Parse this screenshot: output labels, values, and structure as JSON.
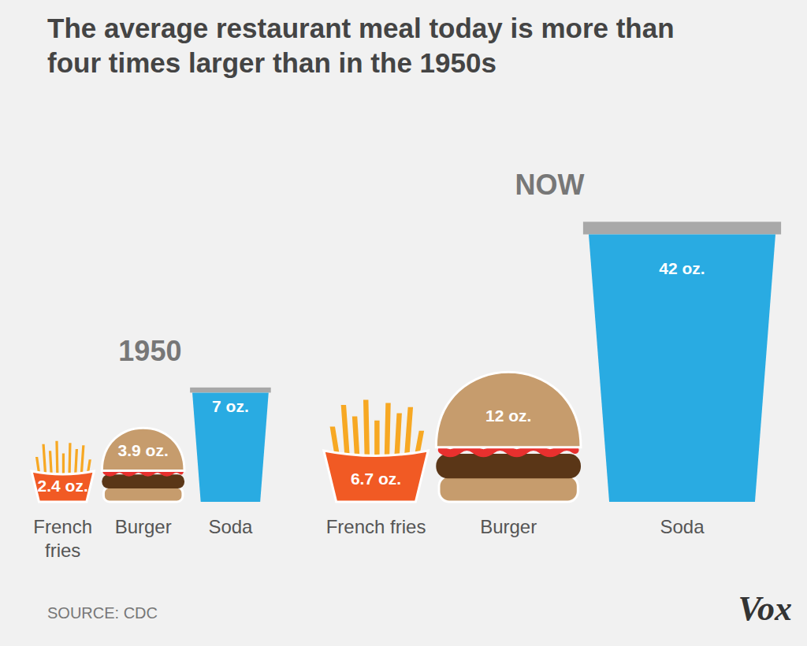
{
  "chart_data": {
    "type": "pictograph",
    "title": "The average restaurant meal today is more than four times larger than in the 1950s",
    "categories": [
      "French fries",
      "Burger",
      "Soda"
    ],
    "series": [
      {
        "name": "1950",
        "colors": [
          "#f15a24",
          "#c69c6d",
          "#29abe2"
        ],
        "values": [
          2.4,
          3.9,
          7
        ],
        "value_labels": [
          "2.4 oz.",
          "3.9 oz.",
          "7 oz."
        ]
      },
      {
        "name": "NOW",
        "colors": [
          "#f15a24",
          "#c69c6d",
          "#29abe2"
        ],
        "values": [
          6.7,
          12,
          42
        ],
        "value_labels": [
          "6.7 oz.",
          "12 oz.",
          "42 oz."
        ]
      }
    ],
    "data_labels": true,
    "tick_labels": false,
    "source": "SOURCE: CDC",
    "brand": "Vox"
  }
}
